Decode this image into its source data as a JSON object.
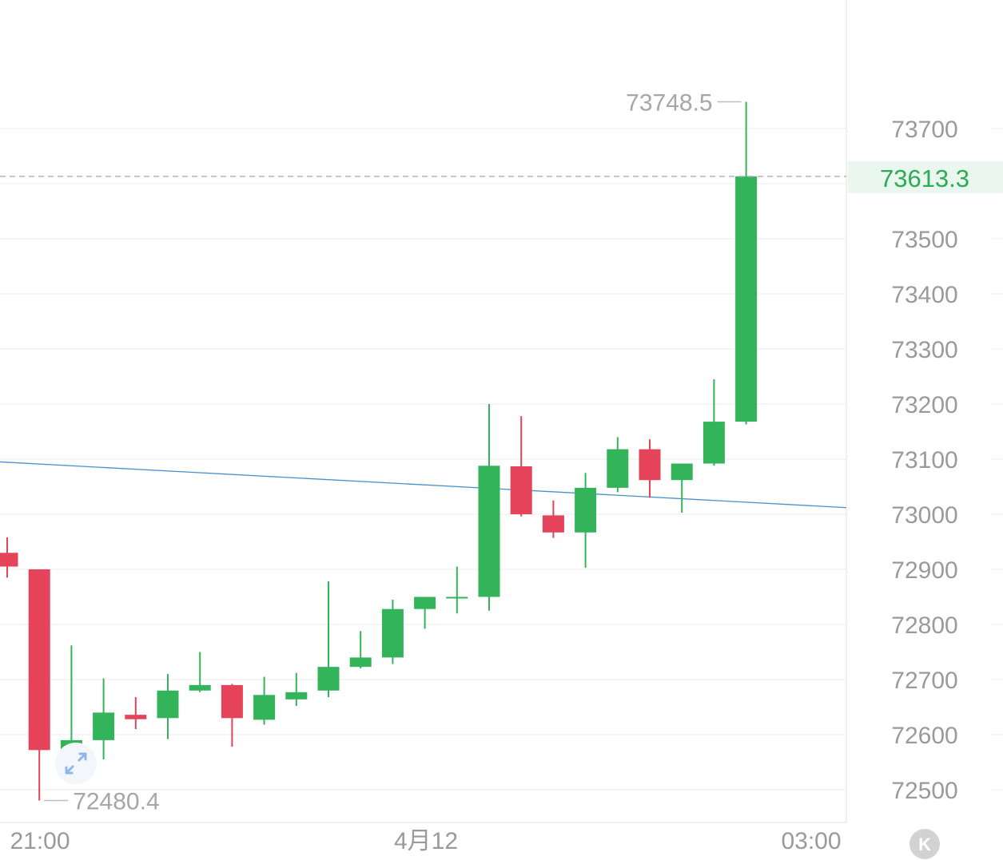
{
  "chart_data": {
    "type": "candlestick",
    "y_axis": {
      "min": 72450,
      "max": 73880,
      "ticks": [
        73700,
        73500,
        73400,
        73300,
        73200,
        73100,
        73000,
        72900,
        72800,
        72700,
        72600,
        72500
      ]
    },
    "x_axis": {
      "labels": [
        "21:00",
        "4月12",
        "03:00"
      ]
    },
    "last_price": {
      "value": 73613.3,
      "label": "73613.3"
    },
    "high_marker": {
      "value": 73748.5,
      "label": "73748.5"
    },
    "low_marker": {
      "value": 72480.4,
      "label": "72480.4"
    },
    "trend_line": {
      "start": 73095,
      "end": 73012
    },
    "candles": [
      {
        "o": 72930,
        "h": 72958,
        "l": 72885,
        "c": 72905
      },
      {
        "o": 72900,
        "h": 72900,
        "l": 72480.4,
        "c": 72572
      },
      {
        "o": 72572,
        "h": 72762,
        "l": 72558,
        "c": 72590
      },
      {
        "o": 72590,
        "h": 72702,
        "l": 72555,
        "c": 72640
      },
      {
        "o": 72636,
        "h": 72668,
        "l": 72610,
        "c": 72628
      },
      {
        "o": 72630,
        "h": 72710,
        "l": 72592,
        "c": 72680
      },
      {
        "o": 72680,
        "h": 72750,
        "l": 72677,
        "c": 72690
      },
      {
        "o": 72690,
        "h": 72692,
        "l": 72578,
        "c": 72630
      },
      {
        "o": 72627,
        "h": 72705,
        "l": 72618,
        "c": 72672
      },
      {
        "o": 72664,
        "h": 72712,
        "l": 72652,
        "c": 72677
      },
      {
        "o": 72680,
        "h": 72878,
        "l": 72668,
        "c": 72723
      },
      {
        "o": 72723,
        "h": 72788,
        "l": 72720,
        "c": 72740
      },
      {
        "o": 72740,
        "h": 72845,
        "l": 72728,
        "c": 72828
      },
      {
        "o": 72828,
        "h": 72850,
        "l": 72792,
        "c": 72850
      },
      {
        "o": 72850,
        "h": 72905,
        "l": 72820,
        "c": 72850
      },
      {
        "o": 72850,
        "h": 73200,
        "l": 72825,
        "c": 73088
      },
      {
        "o": 73087,
        "h": 73178,
        "l": 72996,
        "c": 73000
      },
      {
        "o": 72998,
        "h": 73025,
        "l": 72957,
        "c": 72967
      },
      {
        "o": 72967,
        "h": 73075,
        "l": 72903,
        "c": 73048
      },
      {
        "o": 73048,
        "h": 73140,
        "l": 73040,
        "c": 73118
      },
      {
        "o": 73118,
        "h": 73136,
        "l": 73030,
        "c": 73062
      },
      {
        "o": 73062,
        "h": 73092,
        "l": 73003,
        "c": 73092
      },
      {
        "o": 73092,
        "h": 73245,
        "l": 73088,
        "c": 73168
      },
      {
        "o": 73168,
        "h": 73748.5,
        "l": 73163,
        "c": 73613.3
      }
    ],
    "colors": {
      "up": "#34b45a",
      "down": "#e5435a",
      "grid": "#efefef",
      "trend_line": "#4a90c8",
      "last_price_text": "#2eaa55",
      "last_price_bg": "#eaf7ee",
      "axis_text": "#9a9a9a",
      "dashed_line": "#b5b5b5"
    }
  },
  "icons": {
    "expand": "expand-arrows-icon",
    "scroll_latest": "k-icon"
  },
  "scroll_latest_glyph": "K"
}
